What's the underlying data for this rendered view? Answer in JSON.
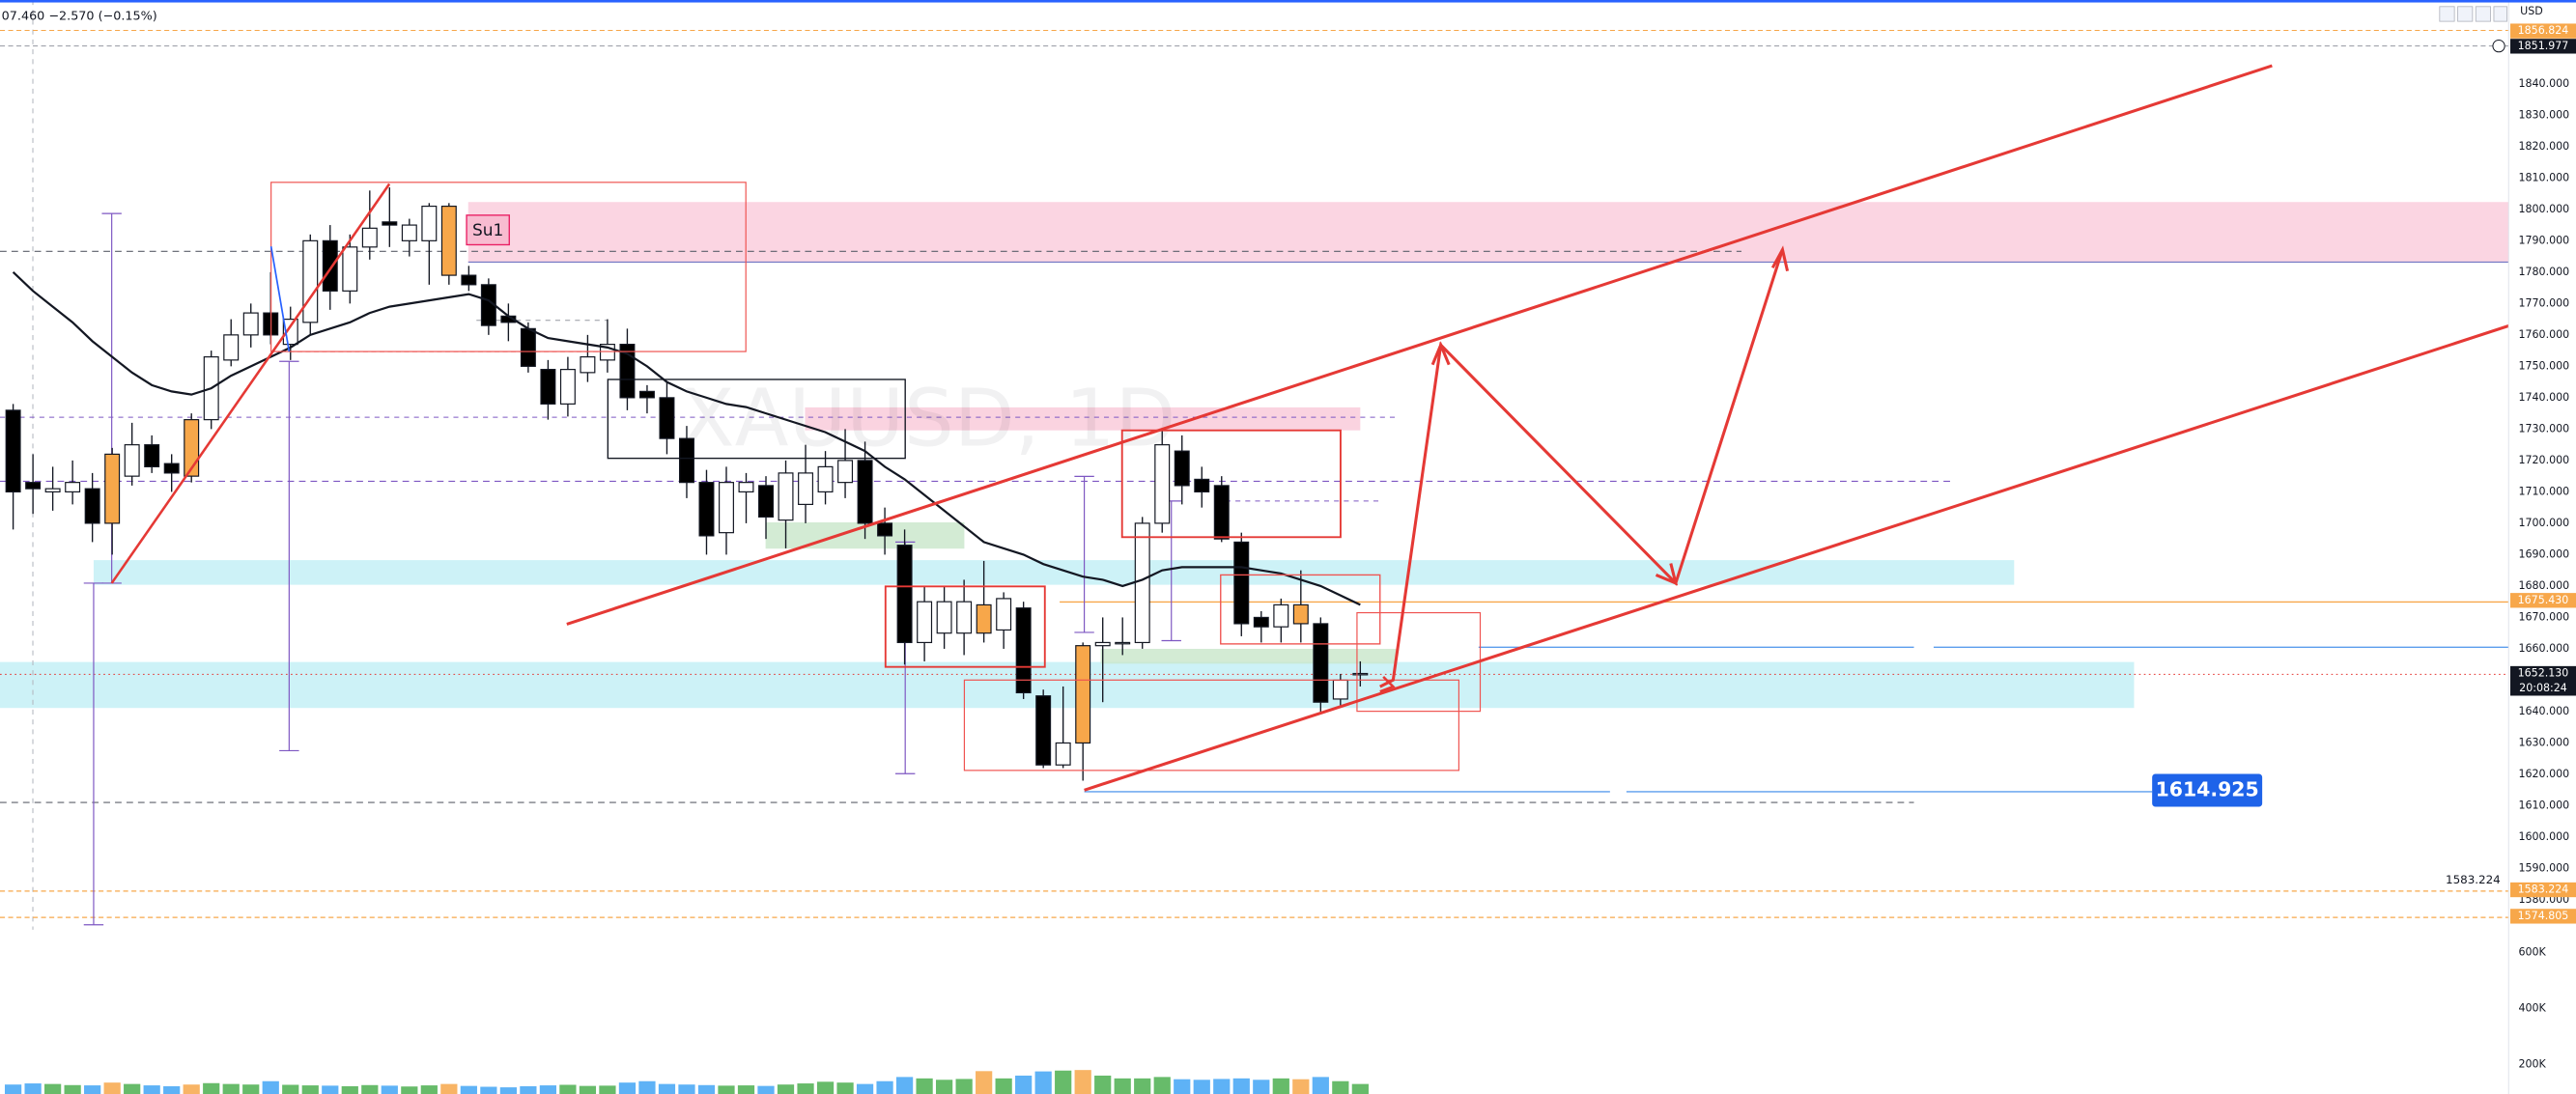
{
  "chart_data": {
    "type": "candlestick",
    "title": "XAUUSD, 1D",
    "header": "07.460 −2.570 (−0.15%)",
    "currency": "USD",
    "annotation": "Su1",
    "ylim": [
      1570.5,
      1866.7
    ],
    "yticks": [
      {
        "value": 1580,
        "label": "1580.000"
      },
      {
        "value": 1590,
        "label": "1590.000"
      },
      {
        "value": 1600,
        "label": "1600.000"
      },
      {
        "value": 1610,
        "label": "1610.000"
      },
      {
        "value": 1620,
        "label": "1620.000"
      },
      {
        "value": 1630,
        "label": "1630.000"
      },
      {
        "value": 1640,
        "label": "1640.000"
      },
      {
        "value": 1660,
        "label": "1660.000"
      },
      {
        "value": 1670,
        "label": "1670.000"
      },
      {
        "value": 1680,
        "label": "1680.000"
      },
      {
        "value": 1690,
        "label": "1690.000"
      },
      {
        "value": 1700,
        "label": "1700.000"
      },
      {
        "value": 1710,
        "label": "1710.000"
      },
      {
        "value": 1720,
        "label": "1720.000"
      },
      {
        "value": 1730,
        "label": "1730.000"
      },
      {
        "value": 1740,
        "label": "1740.000"
      },
      {
        "value": 1750,
        "label": "1750.000"
      },
      {
        "value": 1760,
        "label": "1760.000"
      },
      {
        "value": 1770,
        "label": "1770.000"
      },
      {
        "value": 1780,
        "label": "1780.000"
      },
      {
        "value": 1790,
        "label": "1790.000"
      },
      {
        "value": 1800,
        "label": "1800.000"
      },
      {
        "value": 1810,
        "label": "1810.000"
      },
      {
        "value": 1820,
        "label": "1820.000"
      },
      {
        "value": 1830,
        "label": "1830.000"
      },
      {
        "value": 1840,
        "label": "1840.000"
      }
    ],
    "open": [
      1736,
      1713,
      1710,
      1710,
      1711,
      1700,
      1715,
      1725,
      1719,
      1715,
      1733,
      1752,
      1760,
      1767,
      1757,
      1764,
      1790,
      1774,
      1788,
      1796,
      1790,
      1790,
      1801,
      1779,
      1776,
      1766,
      1762,
      1749,
      1738,
      1748,
      1752,
      1757,
      1742,
      1740,
      1727,
      1713,
      1697,
      1710,
      1712,
      1701,
      1706,
      1710,
      1713,
      1720,
      1700,
      1693,
      1662,
      1665,
      1665,
      1665,
      1666,
      1673,
      1645,
      1623,
      1630,
      1661,
      1662,
      1662,
      1700,
      1723,
      1714,
      1712,
      1694,
      1670,
      1667,
      1674,
      1668,
      1644,
      1652
    ],
    "high": [
      1738,
      1722,
      1718,
      1720,
      1716,
      1724,
      1732,
      1728,
      1722,
      1735,
      1755,
      1765,
      1770,
      1780,
      1769,
      1792,
      1795,
      1792,
      1806,
      1807,
      1797,
      1802,
      1802,
      1782,
      1778,
      1770,
      1764,
      1752,
      1753,
      1760,
      1765,
      1762,
      1744,
      1745,
      1731,
      1717,
      1718,
      1716,
      1715,
      1720,
      1725,
      1723,
      1730,
      1726,
      1705,
      1698,
      1680,
      1680,
      1682,
      1688,
      1678,
      1675,
      1647,
      1648,
      1662,
      1670,
      1670,
      1702,
      1730,
      1728,
      1718,
      1715,
      1697,
      1672,
      1676,
      1685,
      1670,
      1652,
      1656
    ],
    "low": [
      1698,
      1703,
      1704,
      1706,
      1694,
      1690,
      1712,
      1716,
      1710,
      1713,
      1730,
      1750,
      1756,
      1757,
      1752,
      1760,
      1768,
      1770,
      1784,
      1788,
      1785,
      1776,
      1776,
      1774,
      1760,
      1758,
      1748,
      1733,
      1734,
      1745,
      1748,
      1736,
      1735,
      1722,
      1708,
      1690,
      1690,
      1700,
      1695,
      1692,
      1700,
      1706,
      1708,
      1695,
      1690,
      1655,
      1656,
      1660,
      1658,
      1662,
      1660,
      1644,
      1622,
      1622,
      1618,
      1643,
      1658,
      1660,
      1697,
      1706,
      1705,
      1694,
      1664,
      1662,
      1662,
      1662,
      1640,
      1642,
      1648
    ],
    "close": [
      1710,
      1711,
      1711,
      1713,
      1700,
      1722,
      1725,
      1718,
      1716,
      1733,
      1753,
      1760,
      1767,
      1760,
      1765,
      1790,
      1774,
      1788,
      1794,
      1795,
      1795,
      1801,
      1779,
      1776,
      1763,
      1764,
      1750,
      1738,
      1749,
      1753,
      1757,
      1740,
      1740,
      1727,
      1713,
      1696,
      1713,
      1713,
      1702,
      1716,
      1716,
      1718,
      1720,
      1700,
      1696,
      1662,
      1675,
      1675,
      1675,
      1674,
      1676,
      1646,
      1623,
      1630,
      1661,
      1662,
      1662,
      1700,
      1725,
      1712,
      1710,
      1695,
      1668,
      1667,
      1674,
      1668,
      1643,
      1650,
      1652.13
    ],
    "colors": [
      "#000000",
      "#000000",
      "#ffffff",
      "#ffffff",
      "#000000",
      "#f7a74a",
      "#ffffff",
      "#000000",
      "#000000",
      "#f7a74a",
      "#ffffff",
      "#ffffff",
      "#ffffff",
      "#000000",
      "#ffffff",
      "#ffffff",
      "#000000",
      "#ffffff",
      "#ffffff",
      "#000000",
      "#ffffff",
      "#ffffff",
      "#f7a74a",
      "#000000",
      "#000000",
      "#000000",
      "#000000",
      "#000000",
      "#ffffff",
      "#ffffff",
      "#ffffff",
      "#000000",
      "#000000",
      "#000000",
      "#000000",
      "#000000",
      "#ffffff",
      "#ffffff",
      "#000000",
      "#ffffff",
      "#ffffff",
      "#ffffff",
      "#ffffff",
      "#000000",
      "#000000",
      "#000000",
      "#ffffff",
      "#ffffff",
      "#ffffff",
      "#f7a74a",
      "#ffffff",
      "#000000",
      "#000000",
      "#ffffff",
      "#f7a74a",
      "#ffffff",
      "#ffffff",
      "#ffffff",
      "#ffffff",
      "#000000",
      "#000000",
      "#000000",
      "#000000",
      "#000000",
      "#ffffff",
      "#f7a74a",
      "#000000",
      "#ffffff",
      "#ffffff"
    ],
    "ma": {
      "color": "#131722",
      "values": [
        1780,
        1774,
        1769,
        1764,
        1758,
        1753,
        1748,
        1744,
        1742,
        1741,
        1743,
        1747,
        1750,
        1753,
        1756,
        1760,
        1762,
        1764,
        1767,
        1769,
        1770,
        1771,
        1772,
        1773,
        1771,
        1766,
        1762,
        1759,
        1758,
        1757,
        1756,
        1754,
        1750,
        1745,
        1742,
        1740,
        1738,
        1737,
        1735,
        1733,
        1731,
        1729,
        1726,
        1723,
        1718,
        1714,
        1709,
        1704,
        1699,
        1694,
        1692,
        1690,
        1687,
        1685,
        1683,
        1682,
        1680,
        1682,
        1685,
        1686,
        1686,
        1686,
        1686,
        1685,
        1684,
        1682,
        1680,
        1677,
        1674
      ]
    },
    "volume": {
      "values": [
        128000,
        132000,
        130000,
        126000,
        125000,
        135000,
        130000,
        125000,
        122000,
        128000,
        133000,
        130000,
        128000,
        140000,
        127000,
        125000,
        124000,
        122000,
        126000,
        124000,
        121000,
        125000,
        130000,
        123000,
        120000,
        118000,
        122000,
        125000,
        127000,
        123000,
        124000,
        135000,
        140000,
        130000,
        128000,
        126000,
        124000,
        125000,
        123000,
        128000,
        132000,
        138000,
        135000,
        130000,
        140000,
        155000,
        150000,
        145000,
        148000,
        176000,
        150000,
        160000,
        175000,
        178000,
        180000,
        160000,
        150000,
        150000,
        155000,
        147000,
        145000,
        148000,
        150000,
        145000,
        150000,
        147000,
        155000,
        140000,
        130000
      ],
      "up_color": "#4caf50",
      "down_color": "#42a5f5",
      "highlight_color": "#f7a74a",
      "ylim": [
        0,
        800000
      ],
      "yticks": [
        {
          "value": 600000,
          "label": "600K"
        },
        {
          "value": 400000,
          "label": "400K"
        },
        {
          "value": 200000,
          "label": "200K"
        }
      ]
    },
    "price_labels": [
      {
        "value": 1856.824,
        "label": "1856.824",
        "color": "#f7a74a"
      },
      {
        "value": 1851.977,
        "label": "1851.977",
        "color": "#131722"
      },
      {
        "value": 1675.43,
        "label": "1675.430",
        "color": "#f7a74a"
      },
      {
        "value": 1652.13,
        "label": "1652.130",
        "sub": "20:08:24",
        "color": "#131722"
      },
      {
        "value": 1583.224,
        "label": "1583.224",
        "color": "#f7a74a"
      },
      {
        "value": 1574.805,
        "label": "1574.805",
        "color": "#f7a74a"
      }
    ],
    "callout": {
      "value": 1614.925,
      "label": "1614.925",
      "color": "#1e63e9"
    },
    "level_text": {
      "value": 1583.224,
      "label": "1583.224"
    }
  }
}
